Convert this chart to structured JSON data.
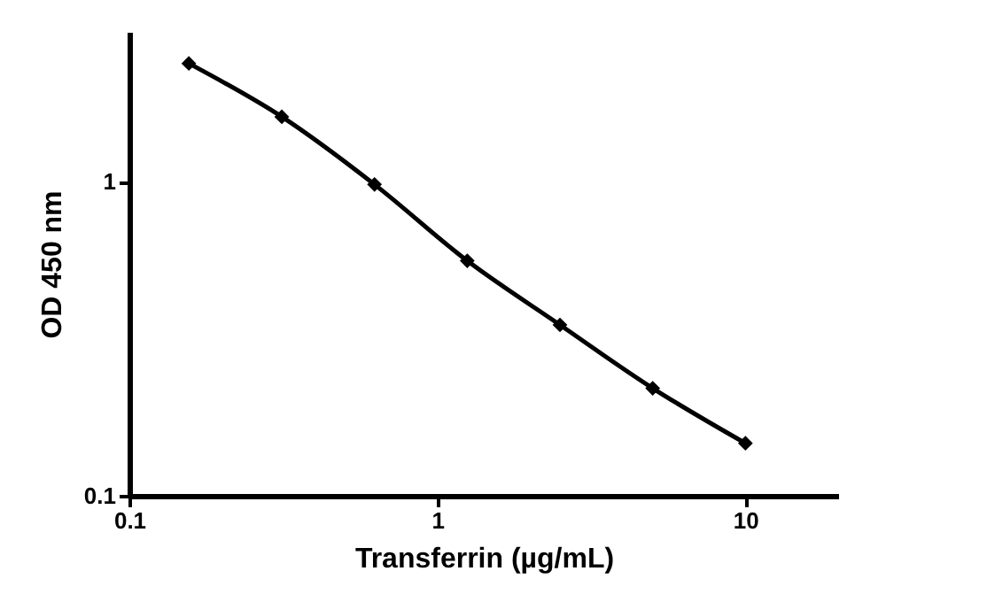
{
  "chart_data": {
    "type": "line",
    "xlabel": "Transferrin (µg/mL)",
    "ylabel": "OD 450 nm",
    "x": [
      0.156,
      0.3125,
      0.625,
      1.25,
      2.5,
      5,
      10
    ],
    "series": [
      {
        "color": "#000000",
        "values": [
          2.38,
          1.61,
          0.98,
          0.56,
          0.35,
          0.22,
          0.147
        ]
      }
    ],
    "log": "xy",
    "xlim": [
      0.1,
      20
    ],
    "xticks": [
      0.1,
      1,
      10
    ],
    "ylim": [
      0.1,
      3
    ],
    "yticks": [
      0.1,
      1
    ],
    "marker": "diamond",
    "line_style": "solid",
    "grid": false
  }
}
